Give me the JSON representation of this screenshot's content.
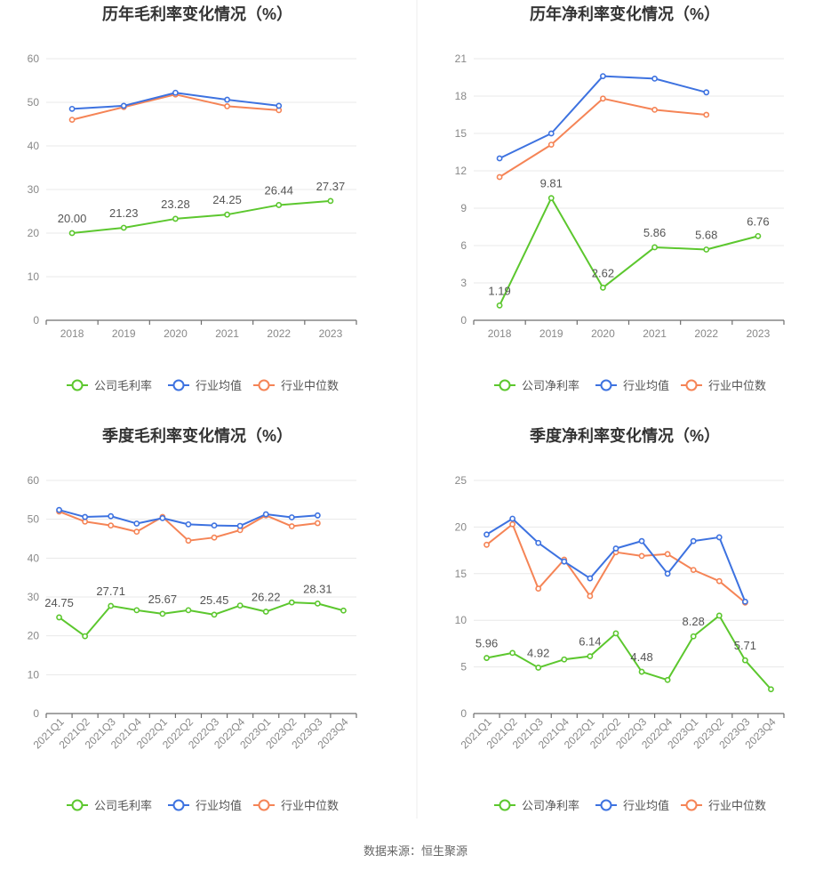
{
  "chart_data": [
    {
      "type": "line",
      "title": "历年毛利率变化情况（%）",
      "categories": [
        "2018",
        "2019",
        "2020",
        "2021",
        "2022",
        "2023"
      ],
      "ylim": [
        0,
        60
      ],
      "yticks": [
        0,
        10,
        20,
        30,
        40,
        50,
        60
      ],
      "series": [
        {
          "name": "公司毛利率",
          "color": "#5cc72e",
          "values": [
            20.0,
            21.23,
            23.28,
            24.25,
            26.44,
            27.37
          ],
          "labels": [
            "20.00",
            "21.23",
            "23.28",
            "24.25",
            "26.44",
            "27.37"
          ]
        },
        {
          "name": "行业均值",
          "color": "#3d72e0",
          "values": [
            48.5,
            49.2,
            52.2,
            50.6,
            49.2,
            null
          ]
        },
        {
          "name": "行业中位数",
          "color": "#f58456",
          "values": [
            46.0,
            48.9,
            51.8,
            49.1,
            48.2,
            null
          ]
        }
      ],
      "legend": "bottom-center",
      "grid": true
    },
    {
      "type": "line",
      "title": "历年净利率变化情况（%）",
      "categories": [
        "2018",
        "2019",
        "2020",
        "2021",
        "2022",
        "2023"
      ],
      "ylim": [
        0,
        21
      ],
      "yticks": [
        0,
        3,
        6,
        9,
        12,
        15,
        18,
        21
      ],
      "series": [
        {
          "name": "公司净利率",
          "color": "#5cc72e",
          "values": [
            1.19,
            9.81,
            2.62,
            5.86,
            5.68,
            6.76
          ],
          "labels": [
            "1.19",
            "9.81",
            "2.62",
            "5.86",
            "5.68",
            "6.76"
          ]
        },
        {
          "name": "行业均值",
          "color": "#3d72e0",
          "values": [
            13.0,
            15.0,
            19.6,
            19.4,
            18.3,
            null
          ]
        },
        {
          "name": "行业中位数",
          "color": "#f58456",
          "values": [
            11.5,
            14.1,
            17.8,
            16.9,
            16.5,
            null
          ]
        }
      ],
      "legend": "bottom-center",
      "grid": true
    },
    {
      "type": "line",
      "title": "季度毛利率变化情况（%）",
      "categories": [
        "2021Q1",
        "2021Q2",
        "2021Q3",
        "2021Q4",
        "2022Q1",
        "2022Q2",
        "2022Q3",
        "2022Q4",
        "2023Q1",
        "2023Q2",
        "2023Q3",
        "2023Q4"
      ],
      "ylim": [
        0,
        60
      ],
      "yticks": [
        0,
        10,
        20,
        30,
        40,
        50,
        60
      ],
      "series": [
        {
          "name": "公司毛利率",
          "color": "#5cc72e",
          "values": [
            24.75,
            19.9,
            27.71,
            26.6,
            25.67,
            26.6,
            25.45,
            27.8,
            26.22,
            28.6,
            28.31,
            26.5
          ],
          "labels": [
            "24.75",
            "",
            "27.71",
            "",
            "25.67",
            "",
            "25.45",
            "",
            "26.22",
            "",
            "28.31",
            ""
          ]
        },
        {
          "name": "行业均值",
          "color": "#3d72e0",
          "values": [
            52.4,
            50.6,
            50.8,
            48.9,
            50.3,
            48.7,
            48.4,
            48.3,
            51.3,
            50.5,
            51.0,
            null
          ]
        },
        {
          "name": "行业中位数",
          "color": "#f58456",
          "values": [
            52.0,
            49.4,
            48.4,
            46.8,
            50.6,
            44.5,
            45.3,
            47.2,
            51.0,
            48.2,
            49.0,
            null
          ]
        }
      ],
      "legend": "bottom-center",
      "grid": true
    },
    {
      "type": "line",
      "title": "季度净利率变化情况（%）",
      "categories": [
        "2021Q1",
        "2021Q2",
        "2021Q3",
        "2021Q4",
        "2022Q1",
        "2022Q2",
        "2022Q3",
        "2022Q4",
        "2023Q1",
        "2023Q2",
        "2023Q3",
        "2023Q4"
      ],
      "ylim": [
        0,
        25
      ],
      "yticks": [
        0,
        5,
        10,
        15,
        20,
        25
      ],
      "series": [
        {
          "name": "公司净利率",
          "color": "#5cc72e",
          "values": [
            5.96,
            6.5,
            4.92,
            5.8,
            6.14,
            8.6,
            4.48,
            3.6,
            8.28,
            10.5,
            5.71,
            2.6
          ],
          "labels": [
            "5.96",
            "",
            "4.92",
            "",
            "6.14",
            "",
            "4.48",
            "",
            "8.28",
            "",
            "5.71",
            ""
          ]
        },
        {
          "name": "行业均值",
          "color": "#3d72e0",
          "values": [
            19.2,
            20.9,
            18.3,
            16.3,
            14.5,
            17.7,
            18.5,
            15.0,
            18.5,
            18.9,
            12.0,
            null
          ]
        },
        {
          "name": "行业中位数",
          "color": "#f58456",
          "values": [
            18.1,
            20.3,
            13.4,
            16.5,
            12.6,
            17.3,
            16.9,
            17.1,
            15.4,
            14.2,
            11.9,
            null
          ]
        }
      ],
      "legend": "bottom-center",
      "grid": true
    }
  ],
  "footer": {
    "source": "数据来源：恒生聚源"
  }
}
